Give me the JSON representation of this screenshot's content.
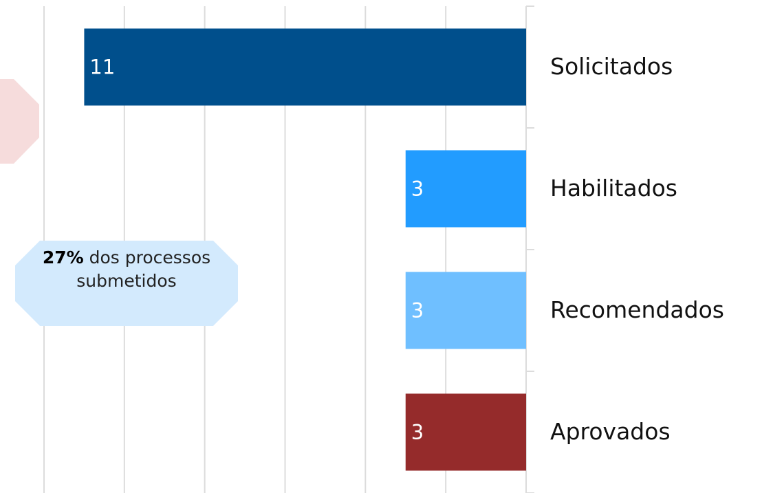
{
  "chart_data": {
    "type": "barh",
    "categories": [
      "Solicitados",
      "Habilitados",
      "Recomendados",
      "Aprovados"
    ],
    "values": [
      11,
      3,
      3,
      3
    ],
    "colors": [
      "#004f8c",
      "#229cff",
      "#6fbfff",
      "#952b2b"
    ],
    "xlim": [
      0,
      12
    ],
    "xticks": [
      0,
      2,
      4,
      6,
      8,
      10,
      12
    ],
    "x_reversed": true,
    "grid": true,
    "annotation_value": "27%",
    "annotation_text": "dos processos submetidos"
  }
}
